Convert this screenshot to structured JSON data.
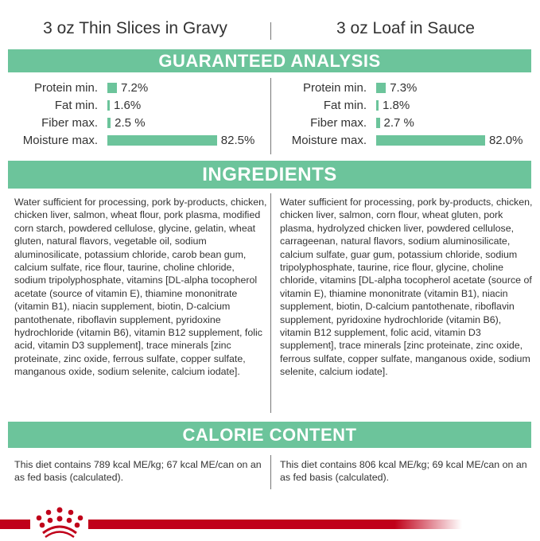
{
  "products": [
    {
      "title": "3 oz Thin Slices in Gravy",
      "analysis": [
        {
          "label": "Protein min.",
          "value": "7.2%",
          "pct": 7.2
        },
        {
          "label": "Fat min.",
          "value": "1.6%",
          "pct": 1.6
        },
        {
          "label": "Fiber max.",
          "value": "2.5 %",
          "pct": 2.5
        },
        {
          "label": "Moisture max.",
          "value": "82.5%",
          "pct": 82.5
        }
      ],
      "ingredients": "Water sufficient for processing, pork by-products, chicken, chicken liver, salmon, wheat flour, pork plasma, modified corn starch, powdered cellulose, glycine, gelatin, wheat gluten, natural flavors, vegetable oil, sodium aluminosilicate, potassium chloride, carob bean gum, calcium sulfate, rice flour, taurine, choline chloride, sodium tripolyphosphate, vitamins [DL-alpha tocopherol acetate (source of vitamin E), thiamine mononitrate (vitamin B1), niacin supplement, biotin, D-calcium pantothenate, riboflavin supplement, pyridoxine hydrochloride (vitamin B6), vitamin B12 supplement, folic acid, vitamin D3 supplement], trace minerals [zinc proteinate, zinc oxide, ferrous sulfate, copper sulfate, manganous oxide, sodium selenite, calcium iodate].",
      "calorie": "This diet contains 789 kcal ME/kg; 67 kcal ME/can on an as fed basis (calculated)."
    },
    {
      "title": "3 oz Loaf in Sauce",
      "analysis": [
        {
          "label": "Protein min.",
          "value": "7.3%",
          "pct": 7.3
        },
        {
          "label": "Fat min.",
          "value": "1.8%",
          "pct": 1.8
        },
        {
          "label": "Fiber max.",
          "value": "2.7 %",
          "pct": 2.7
        },
        {
          "label": "Moisture max.",
          "value": "82.0%",
          "pct": 82.0
        }
      ],
      "ingredients": "Water sufficient for processing, pork by-products, chicken, chicken liver, salmon, corn flour, wheat gluten, pork plasma, hydrolyzed chicken liver, powdered cellulose, carrageenan, natural flavors, sodium aluminosilicate, calcium sulfate, guar gum, potassium chloride, sodium tripolyphosphate, taurine, rice flour, glycine, choline chloride, vitamins [DL-alpha tocopherol acetate (source of vitamin E), thiamine mononitrate (vitamin B1), niacin supplement, biotin, D-calcium pantothenate, riboflavin supplement, pyridoxine hydrochloride (vitamin B6), vitamin B12 supplement, folic acid, vitamin D3 supplement], trace minerals [zinc proteinate, zinc oxide, ferrous sulfate, copper sulfate, manganous oxide, sodium selenite, calcium iodate].",
      "calorie": "This diet contains 806 kcal ME/kg; 69 kcal ME/can on an as fed basis (calculated)."
    }
  ],
  "sections": {
    "analysis": "GUARANTEED ANALYSIS",
    "ingredients": "INGREDIENTS",
    "calorie": "CALORIE CONTENT"
  },
  "brand": {
    "logo": "Royal Canin crown",
    "color": "#c0001a"
  },
  "colors": {
    "accent": "#6cc49b"
  }
}
